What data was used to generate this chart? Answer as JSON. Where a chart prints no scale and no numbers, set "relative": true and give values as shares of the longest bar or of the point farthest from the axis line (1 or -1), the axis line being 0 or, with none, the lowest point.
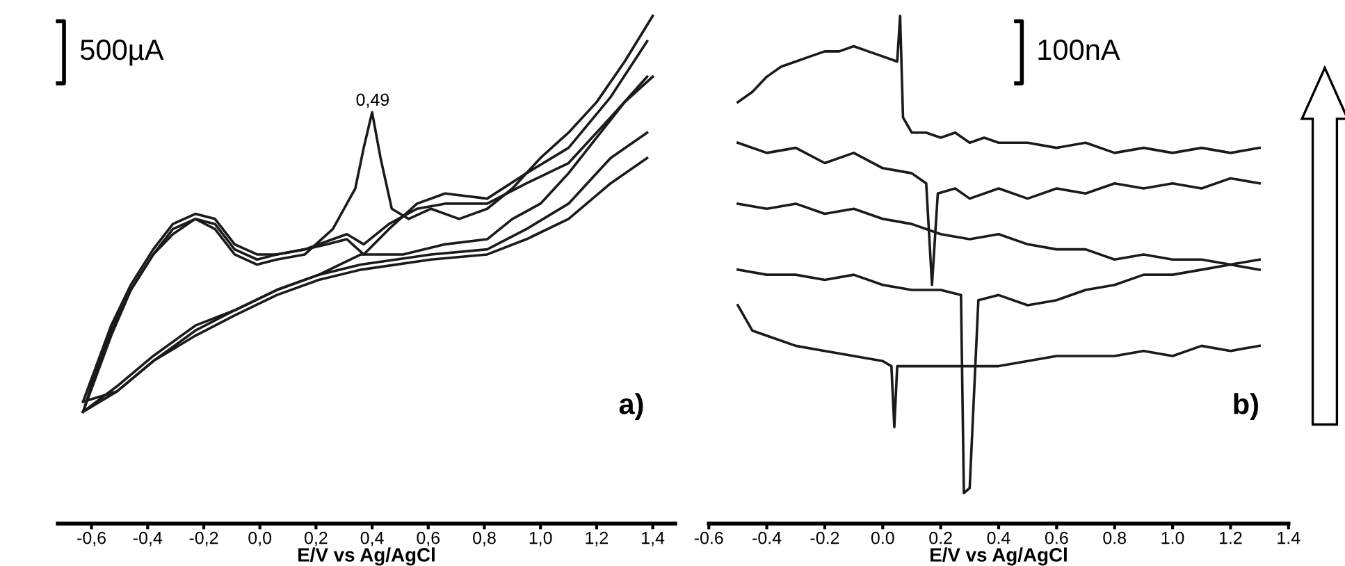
{
  "chart_data": [
    {
      "type": "line",
      "relative": true,
      "xlabel": "E/V vs Ag/AgCl",
      "tick_labels": "x",
      "legend": false,
      "grid": false,
      "xlim": [
        -0.72,
        1.48
      ],
      "xticks": [
        {
          "value": -0.6,
          "label": "-0,6"
        },
        {
          "value": -0.4,
          "label": "-0,4"
        },
        {
          "value": -0.2,
          "label": "-0,2"
        },
        {
          "value": 0.0,
          "label": "0,0"
        },
        {
          "value": 0.2,
          "label": "0,2"
        },
        {
          "value": 0.4,
          "label": "0,4"
        },
        {
          "value": 0.6,
          "label": "0,6"
        },
        {
          "value": 0.8,
          "label": "0,8"
        },
        {
          "value": 1.0,
          "label": "1,0"
        },
        {
          "value": 1.2,
          "label": "1,2"
        },
        {
          "value": 1.4,
          "label": "1,4"
        }
      ],
      "annotations": [
        "500µA",
        "0,49",
        "a)"
      ],
      "series": [
        {
          "color": "#1a1a1a",
          "x": [
            -0.63,
            -0.59,
            -0.53,
            -0.46,
            -0.38,
            -0.31,
            -0.23,
            -0.16,
            -0.09,
            -0.01,
            0.06,
            0.16,
            0.26,
            0.34,
            0.37,
            0.4,
            0.43,
            0.47,
            0.53,
            0.61,
            0.71,
            0.81,
            0.9,
            1.0,
            1.1,
            1.2,
            1.3,
            1.4
          ],
          "values": [
            0.22,
            0.28,
            0.37,
            0.46,
            0.53,
            0.57,
            0.6,
            0.58,
            0.53,
            0.51,
            0.52,
            0.53,
            0.58,
            0.66,
            0.74,
            0.81,
            0.72,
            0.62,
            0.6,
            0.62,
            0.6,
            0.62,
            0.66,
            0.72,
            0.77,
            0.83,
            0.91,
            1.0
          ]
        },
        {
          "color": "#1a1a1a",
          "x": [
            -0.63,
            -0.51,
            -0.38,
            -0.23,
            -0.09,
            0.06,
            0.21,
            0.36,
            0.51,
            0.66,
            0.81,
            0.9,
            1.0,
            1.1,
            1.2,
            1.3,
            1.4
          ],
          "values": [
            0.22,
            0.27,
            0.33,
            0.39,
            0.42,
            0.46,
            0.49,
            0.53,
            0.53,
            0.55,
            0.56,
            0.6,
            0.63,
            0.69,
            0.76,
            0.83,
            0.88
          ]
        },
        {
          "color": "#1a1a1a",
          "x": [
            -0.63,
            -0.59,
            -0.53,
            -0.46,
            -0.38,
            -0.31,
            -0.23,
            -0.16,
            -0.09,
            -0.01,
            0.06,
            0.16,
            0.24,
            0.31,
            0.37,
            0.46,
            0.56,
            0.66,
            0.81,
            0.95,
            1.1,
            1.25,
            1.38
          ],
          "values": [
            0.22,
            0.29,
            0.38,
            0.46,
            0.53,
            0.58,
            0.6,
            0.59,
            0.54,
            0.52,
            0.53,
            0.54,
            0.55,
            0.56,
            0.53,
            0.58,
            0.63,
            0.65,
            0.64,
            0.69,
            0.74,
            0.84,
            0.95
          ]
        },
        {
          "color": "#1a1a1a",
          "x": [
            -0.63,
            -0.51,
            -0.38,
            -0.23,
            -0.09,
            0.06,
            0.21,
            0.36,
            0.61,
            0.81,
            0.95,
            1.1,
            1.25,
            1.38
          ],
          "values": [
            0.22,
            0.26,
            0.32,
            0.38,
            0.42,
            0.46,
            0.49,
            0.51,
            0.53,
            0.54,
            0.58,
            0.63,
            0.72,
            0.77
          ]
        },
        {
          "color": "#1a1a1a",
          "x": [
            -0.63,
            -0.53,
            -0.46,
            -0.38,
            -0.31,
            -0.23,
            -0.16,
            -0.09,
            -0.01,
            0.06,
            0.16,
            0.26,
            0.31,
            0.37,
            0.46,
            0.56,
            0.66,
            0.81,
            0.95,
            1.1,
            1.25,
            1.38
          ],
          "values": [
            0.24,
            0.39,
            0.47,
            0.54,
            0.59,
            0.61,
            0.6,
            0.55,
            0.53,
            0.53,
            0.54,
            0.56,
            0.57,
            0.55,
            0.59,
            0.62,
            0.63,
            0.63,
            0.67,
            0.71,
            0.8,
            0.88
          ]
        },
        {
          "color": "#1a1a1a",
          "x": [
            -0.63,
            -0.51,
            -0.38,
            -0.23,
            -0.09,
            0.06,
            0.21,
            0.36,
            0.61,
            0.81,
            0.95,
            1.1,
            1.25,
            1.38
          ],
          "values": [
            0.24,
            0.26,
            0.32,
            0.37,
            0.41,
            0.45,
            0.48,
            0.5,
            0.52,
            0.53,
            0.56,
            0.6,
            0.67,
            0.72
          ]
        }
      ]
    },
    {
      "type": "line",
      "relative": true,
      "xlabel": "E/V vs Ag/AgCl",
      "tick_labels": "x",
      "legend": false,
      "grid": false,
      "xlim": [
        -0.6,
        1.4
      ],
      "xticks": [
        -0.6,
        -0.4,
        -0.2,
        {
          "value": 0.0,
          "label": "0.0"
        },
        0.2,
        0.4,
        0.6,
        0.8,
        {
          "value": 1.0,
          "label": "1.0"
        },
        1.2,
        1.4
      ],
      "annotations": [
        "100nA",
        "b)"
      ],
      "series": [
        {
          "color": "#1a1a1a",
          "x": [
            -0.5,
            -0.45,
            -0.4,
            -0.35,
            -0.3,
            -0.25,
            -0.2,
            -0.15,
            -0.1,
            -0.05,
            0.0,
            0.05,
            0.06,
            0.07,
            0.1,
            0.15,
            0.2,
            0.25,
            0.3,
            0.35,
            0.4,
            0.5,
            0.6,
            0.7,
            0.8,
            0.9,
            1.0,
            1.1,
            1.2,
            1.3
          ],
          "values": [
            0.83,
            0.85,
            0.88,
            0.9,
            0.91,
            0.92,
            0.93,
            0.93,
            0.94,
            0.93,
            0.92,
            0.91,
            1.0,
            0.8,
            0.77,
            0.77,
            0.76,
            0.77,
            0.75,
            0.76,
            0.75,
            0.75,
            0.74,
            0.75,
            0.73,
            0.74,
            0.73,
            0.74,
            0.73,
            0.74
          ]
        },
        {
          "color": "#1a1a1a",
          "x": [
            -0.5,
            -0.4,
            -0.3,
            -0.2,
            -0.1,
            0.0,
            0.1,
            0.15,
            0.17,
            0.19,
            0.25,
            0.3,
            0.4,
            0.5,
            0.6,
            0.7,
            0.8,
            0.9,
            1.0,
            1.1,
            1.2,
            1.3
          ],
          "values": [
            0.75,
            0.73,
            0.74,
            0.71,
            0.73,
            0.7,
            0.69,
            0.67,
            0.47,
            0.65,
            0.66,
            0.64,
            0.66,
            0.64,
            0.66,
            0.65,
            0.67,
            0.66,
            0.67,
            0.66,
            0.68,
            0.67
          ]
        },
        {
          "color": "#1a1a1a",
          "x": [
            -0.5,
            -0.4,
            -0.3,
            -0.2,
            -0.1,
            0.0,
            0.1,
            0.2,
            0.3,
            0.4,
            0.5,
            0.6,
            0.7,
            0.8,
            0.9,
            1.0,
            1.1,
            1.2,
            1.3
          ],
          "values": [
            0.63,
            0.62,
            0.63,
            0.61,
            0.62,
            0.6,
            0.59,
            0.57,
            0.56,
            0.57,
            0.55,
            0.54,
            0.54,
            0.52,
            0.53,
            0.52,
            0.52,
            0.51,
            0.52
          ]
        },
        {
          "color": "#1a1a1a",
          "x": [
            -0.5,
            -0.4,
            -0.3,
            -0.2,
            -0.1,
            0.0,
            0.1,
            0.2,
            0.27,
            0.28,
            0.3,
            0.33,
            0.4,
            0.5,
            0.6,
            0.7,
            0.8,
            0.9,
            1.0,
            1.1,
            1.2,
            1.3
          ],
          "values": [
            0.5,
            0.49,
            0.49,
            0.48,
            0.49,
            0.47,
            0.46,
            0.46,
            0.45,
            0.06,
            0.07,
            0.44,
            0.45,
            0.43,
            0.44,
            0.46,
            0.47,
            0.49,
            0.49,
            0.5,
            0.51,
            0.5
          ]
        },
        {
          "color": "#1a1a1a",
          "x": [
            -0.5,
            -0.45,
            -0.4,
            -0.3,
            -0.2,
            -0.1,
            0.0,
            0.03,
            0.04,
            0.05,
            0.1,
            0.2,
            0.3,
            0.4,
            0.5,
            0.6,
            0.7,
            0.8,
            0.9,
            1.0,
            1.1,
            1.2,
            1.3
          ],
          "values": [
            0.43,
            0.38,
            0.37,
            0.35,
            0.34,
            0.33,
            0.32,
            0.31,
            0.19,
            0.31,
            0.31,
            0.31,
            0.31,
            0.31,
            0.32,
            0.33,
            0.33,
            0.33,
            0.34,
            0.33,
            0.35,
            0.34,
            0.35
          ]
        }
      ]
    }
  ]
}
